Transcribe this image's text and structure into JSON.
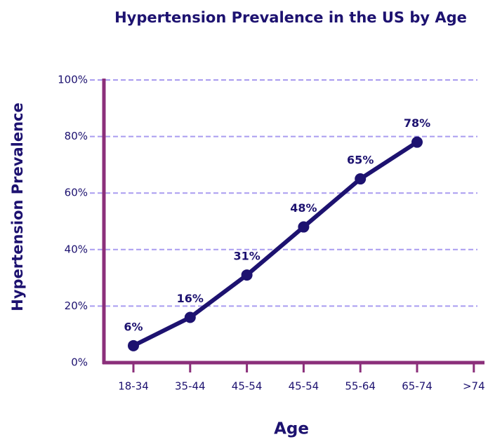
{
  "chart_data": {
    "type": "line",
    "title": "Hypertension Prevalence in the US by Age",
    "x_label": "Age",
    "y_label": "Hypertension Prevalence",
    "categories": [
      "18-34",
      "35-44",
      "45-54",
      "45-54",
      "55-64",
      "65-74",
      ">74"
    ],
    "values": [
      6,
      16,
      31,
      48,
      65,
      78,
      null
    ],
    "value_labels": [
      "6%",
      "16%",
      "31%",
      "48%",
      "65%",
      "78%",
      null
    ],
    "color": "#1d1270",
    "axis_color": "#8b2f7a",
    "grid_color": "#a99cf0",
    "ylim": [
      0,
      100
    ],
    "yticks": [
      {
        "value": 0,
        "label": "0%"
      },
      {
        "value": 20,
        "label": "20%"
      },
      {
        "value": 40,
        "label": "40%"
      },
      {
        "value": 60,
        "label": "60%"
      },
      {
        "value": 80,
        "label": "80%"
      },
      {
        "value": 100,
        "label": "100%"
      }
    ],
    "grid": true
  }
}
